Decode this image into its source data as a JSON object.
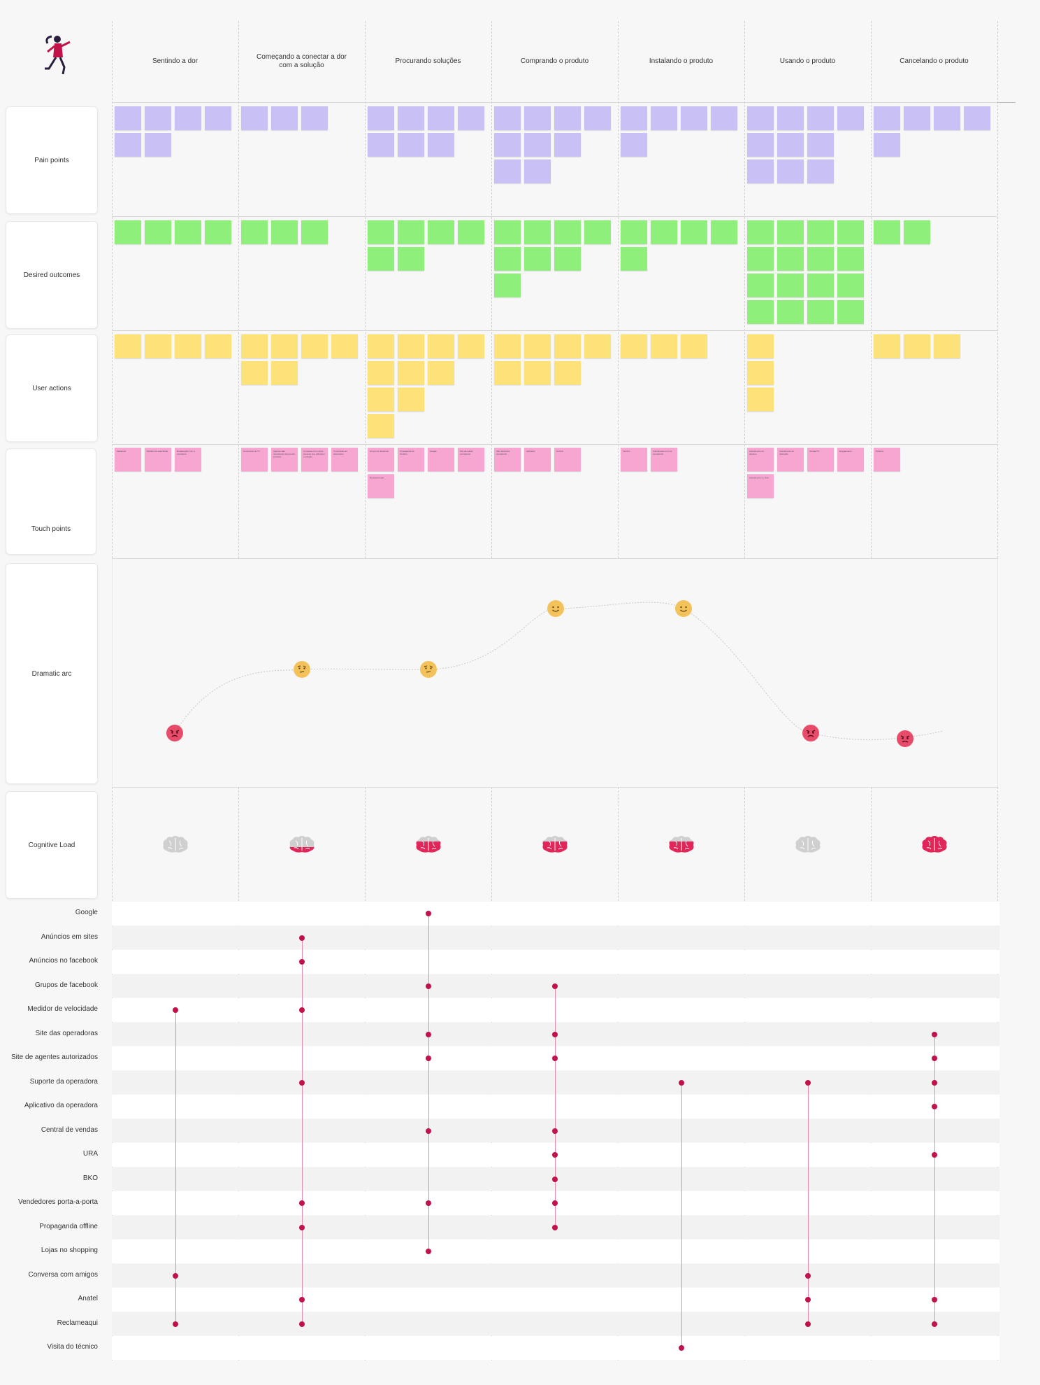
{
  "stages": [
    "Sentindo a dor",
    "Começando a conectar a dor com a solução",
    "Procurando soluções",
    "Comprando o produto",
    "Instalando o produto",
    "Usando o produto",
    "Cancelando o produto"
  ],
  "rows": {
    "pain_points": "Pain points",
    "desired_outcomes": "Desired outcomes",
    "user_actions": "User actions",
    "touch_points": "Touch points",
    "dramatic_arc": "Dramatic arc",
    "cognitive_load": "Cognitive Load"
  },
  "colors": {
    "pain": "#c9c0f5",
    "outcome": "#8ef07a",
    "action": "#fde27a",
    "touch": "#f7a6d2",
    "accent": "#c2124a"
  },
  "touch_points": [
    [
      "Facebook",
      "Medidor de velocidade",
      "Reclamação com a operadora"
    ],
    [
      "Comerciais de TV",
      "Agentes das operadoras oferecendo produtos",
      "Conversa com outras pessoas que utilizaram a solução",
      "Comerciais em sites/redes"
    ],
    [
      "Grupos de facebook",
      "Propaganda de Outdoor",
      "Google",
      "Site de outras operadoras",
      "Revista/Jornais"
    ],
    [
      "Site oficial das operadoras",
      "Aplicativo",
      "Central"
    ],
    [
      "Técnico",
      "Atendimento com as operadoras"
    ],
    [
      "Atendimento de telefone",
      "Atendimento de aplicação",
      "Jornais/TV",
      "Engajamento",
      "Atendimento no chat"
    ],
    [
      "Telefone"
    ]
  ],
  "dramatic_arc": {
    "moods": [
      "angry",
      "thinking",
      "thinking",
      "happy",
      "happy",
      "angry",
      "angry"
    ]
  },
  "cognitive_load": {
    "levels": [
      0,
      1,
      2,
      2,
      2,
      0,
      3
    ]
  },
  "channels": [
    {
      "name": "Google",
      "stages": [
        2
      ]
    },
    {
      "name": "Anúncios em sites",
      "stages": [
        1
      ]
    },
    {
      "name": "Anúncios no facebook",
      "stages": [
        1
      ]
    },
    {
      "name": "Grupos de facebook",
      "stages": [
        2,
        3
      ]
    },
    {
      "name": "Medidor de velocidade",
      "stages": [
        0,
        1
      ]
    },
    {
      "name": "Site das operadoras",
      "stages": [
        2,
        3,
        6
      ]
    },
    {
      "name": "Site de agentes autorizados",
      "stages": [
        2,
        3,
        6
      ]
    },
    {
      "name": "Suporte da operadora",
      "stages": [
        1,
        4,
        5,
        6
      ]
    },
    {
      "name": "Aplicativo da operadora",
      "stages": [
        6
      ]
    },
    {
      "name": "Central de vendas",
      "stages": [
        2,
        3
      ]
    },
    {
      "name": "URA",
      "stages": [
        3,
        6
      ]
    },
    {
      "name": "BKO",
      "stages": [
        3
      ]
    },
    {
      "name": "Vendedores porta-a-porta",
      "stages": [
        1,
        2,
        3
      ]
    },
    {
      "name": "Propaganda offline",
      "stages": [
        1,
        3
      ]
    },
    {
      "name": "Lojas no shopping",
      "stages": [
        2
      ]
    },
    {
      "name": "Conversa com amigos",
      "stages": [
        0,
        5
      ]
    },
    {
      "name": "Anatel",
      "stages": [
        1,
        5,
        6
      ]
    },
    {
      "name": "Reclameaqui",
      "stages": [
        0,
        1,
        5,
        6
      ]
    },
    {
      "name": "Visita do técnico",
      "stages": [
        4
      ]
    }
  ]
}
